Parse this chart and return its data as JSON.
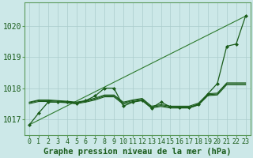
{
  "xlabel": "Graphe pression niveau de la mer (hPa)",
  "xlim": [
    -0.5,
    23.5
  ],
  "ylim": [
    1016.5,
    1020.75
  ],
  "yticks": [
    1017,
    1018,
    1019,
    1020
  ],
  "xticks": [
    0,
    1,
    2,
    3,
    4,
    5,
    6,
    7,
    8,
    9,
    10,
    11,
    12,
    13,
    14,
    15,
    16,
    17,
    18,
    19,
    20,
    21,
    22,
    23
  ],
  "bg_color": "#cce8e8",
  "grid_color": "#aacccc",
  "line_dark": "#1a5c1a",
  "line_med": "#2d7a2d",
  "fontsize_xlabel": 7.5,
  "fontsize_yticks": 7,
  "fontsize_xticks": 6,
  "diag_line": [
    1016.82,
    1020.32
  ],
  "series_with_markers": [
    [
      1016.82,
      1017.2,
      1017.55,
      1017.55,
      1017.55,
      1017.5,
      1017.6,
      1017.75,
      1018.0,
      1018.0,
      1017.42,
      1017.55,
      1017.6,
      1017.36,
      1017.55,
      1017.4,
      1017.37,
      1017.37,
      1017.47,
      1017.82,
      1018.15,
      1019.35,
      1019.42,
      1020.32
    ]
  ],
  "series_plain": [
    [
      1017.55,
      1017.62,
      1017.62,
      1017.6,
      1017.58,
      1017.55,
      1017.6,
      1017.68,
      1017.78,
      1017.78,
      1017.55,
      1017.62,
      1017.67,
      1017.42,
      1017.47,
      1017.42,
      1017.42,
      1017.42,
      1017.52,
      1017.82,
      1017.84,
      1018.17,
      1018.17,
      1018.17
    ],
    [
      1017.53,
      1017.6,
      1017.6,
      1017.58,
      1017.56,
      1017.53,
      1017.58,
      1017.65,
      1017.75,
      1017.75,
      1017.52,
      1017.6,
      1017.64,
      1017.39,
      1017.44,
      1017.39,
      1017.39,
      1017.39,
      1017.49,
      1017.79,
      1017.81,
      1018.14,
      1018.14,
      1018.14
    ],
    [
      1017.5,
      1017.57,
      1017.57,
      1017.55,
      1017.53,
      1017.5,
      1017.55,
      1017.62,
      1017.72,
      1017.72,
      1017.48,
      1017.57,
      1017.61,
      1017.36,
      1017.41,
      1017.36,
      1017.36,
      1017.36,
      1017.46,
      1017.76,
      1017.78,
      1018.11,
      1018.11,
      1018.11
    ]
  ]
}
